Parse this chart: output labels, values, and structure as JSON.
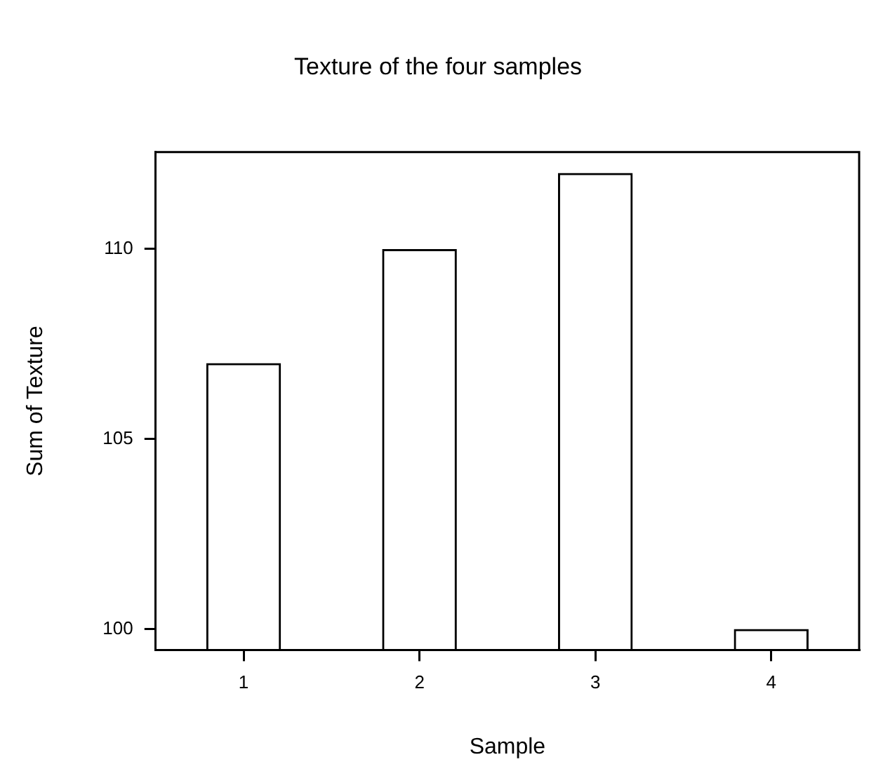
{
  "chart_data": {
    "type": "bar",
    "title": "Texture of the four samples",
    "xlabel": "Sample",
    "ylabel": "Sum of Texture",
    "categories": [
      "1",
      "2",
      "3",
      "4"
    ],
    "values": [
      107,
      110,
      112,
      100
    ],
    "color": "#000000",
    "ylim": [
      99.45,
      112.55
    ],
    "yticks": [
      100,
      105,
      110
    ],
    "grid": false,
    "legend": false
  }
}
